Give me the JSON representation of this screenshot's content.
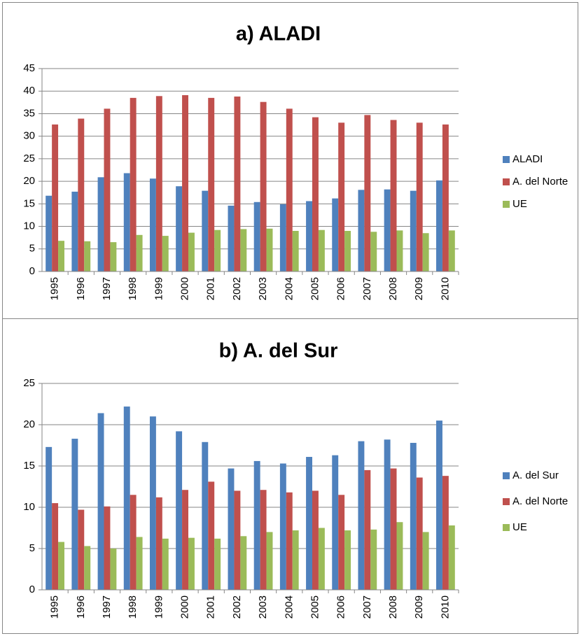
{
  "chart_data": [
    {
      "type": "bar",
      "title": "a) ALADI",
      "categories": [
        "1995",
        "1996",
        "1997",
        "1998",
        "1999",
        "2000",
        "2001",
        "2002",
        "2003",
        "2004",
        "2005",
        "2006",
        "2007",
        "2008",
        "2009",
        "2010"
      ],
      "series": [
        {
          "name": "ALADI",
          "color": "#4f81bd",
          "values": [
            16.8,
            17.7,
            20.9,
            21.8,
            20.6,
            18.9,
            17.9,
            14.6,
            15.4,
            14.9,
            15.6,
            16.2,
            18.1,
            18.2,
            17.9,
            20.2
          ]
        },
        {
          "name": "A. del Norte",
          "color": "#c0504d",
          "values": [
            32.6,
            33.9,
            36.1,
            38.5,
            38.9,
            39.1,
            38.5,
            38.8,
            37.6,
            36.1,
            34.2,
            33.0,
            34.7,
            33.6,
            33.0,
            32.6
          ]
        },
        {
          "name": "UE",
          "color": "#9bbb59",
          "values": [
            6.8,
            6.7,
            6.5,
            8.1,
            7.9,
            8.6,
            9.2,
            9.4,
            9.5,
            9.0,
            9.2,
            9.0,
            8.8,
            9.1,
            8.5,
            9.1
          ]
        }
      ],
      "ylim": [
        0,
        45
      ],
      "yticks": [
        0,
        5,
        10,
        15,
        20,
        25,
        30,
        35,
        40,
        45
      ],
      "grid": true,
      "legend": "right"
    },
    {
      "type": "bar",
      "title": "b) A. del Sur",
      "categories": [
        "1995",
        "1996",
        "1997",
        "1998",
        "1999",
        "2000",
        "2001",
        "2002",
        "2003",
        "2004",
        "2005",
        "2006",
        "2007",
        "2008",
        "2009",
        "2010"
      ],
      "series": [
        {
          "name": "A. del Sur",
          "color": "#4f81bd",
          "values": [
            17.3,
            18.3,
            21.4,
            22.2,
            21.0,
            19.2,
            17.9,
            14.7,
            15.6,
            15.3,
            16.1,
            16.3,
            18.0,
            18.2,
            17.8,
            20.5
          ]
        },
        {
          "name": "A. del Norte",
          "color": "#c0504d",
          "values": [
            10.5,
            9.7,
            10.1,
            11.5,
            11.2,
            12.1,
            13.1,
            12.0,
            12.1,
            11.8,
            12.0,
            11.5,
            14.5,
            14.7,
            13.6,
            13.8
          ]
        },
        {
          "name": "UE",
          "color": "#9bbb59",
          "values": [
            5.8,
            5.3,
            5.0,
            6.4,
            6.2,
            6.3,
            6.2,
            6.5,
            7.0,
            7.2,
            7.5,
            7.2,
            7.3,
            8.2,
            7.0,
            7.8
          ]
        }
      ],
      "ylim": [
        0,
        25
      ],
      "yticks": [
        0,
        5,
        10,
        15,
        20,
        25
      ],
      "grid": true,
      "legend": "right"
    }
  ]
}
